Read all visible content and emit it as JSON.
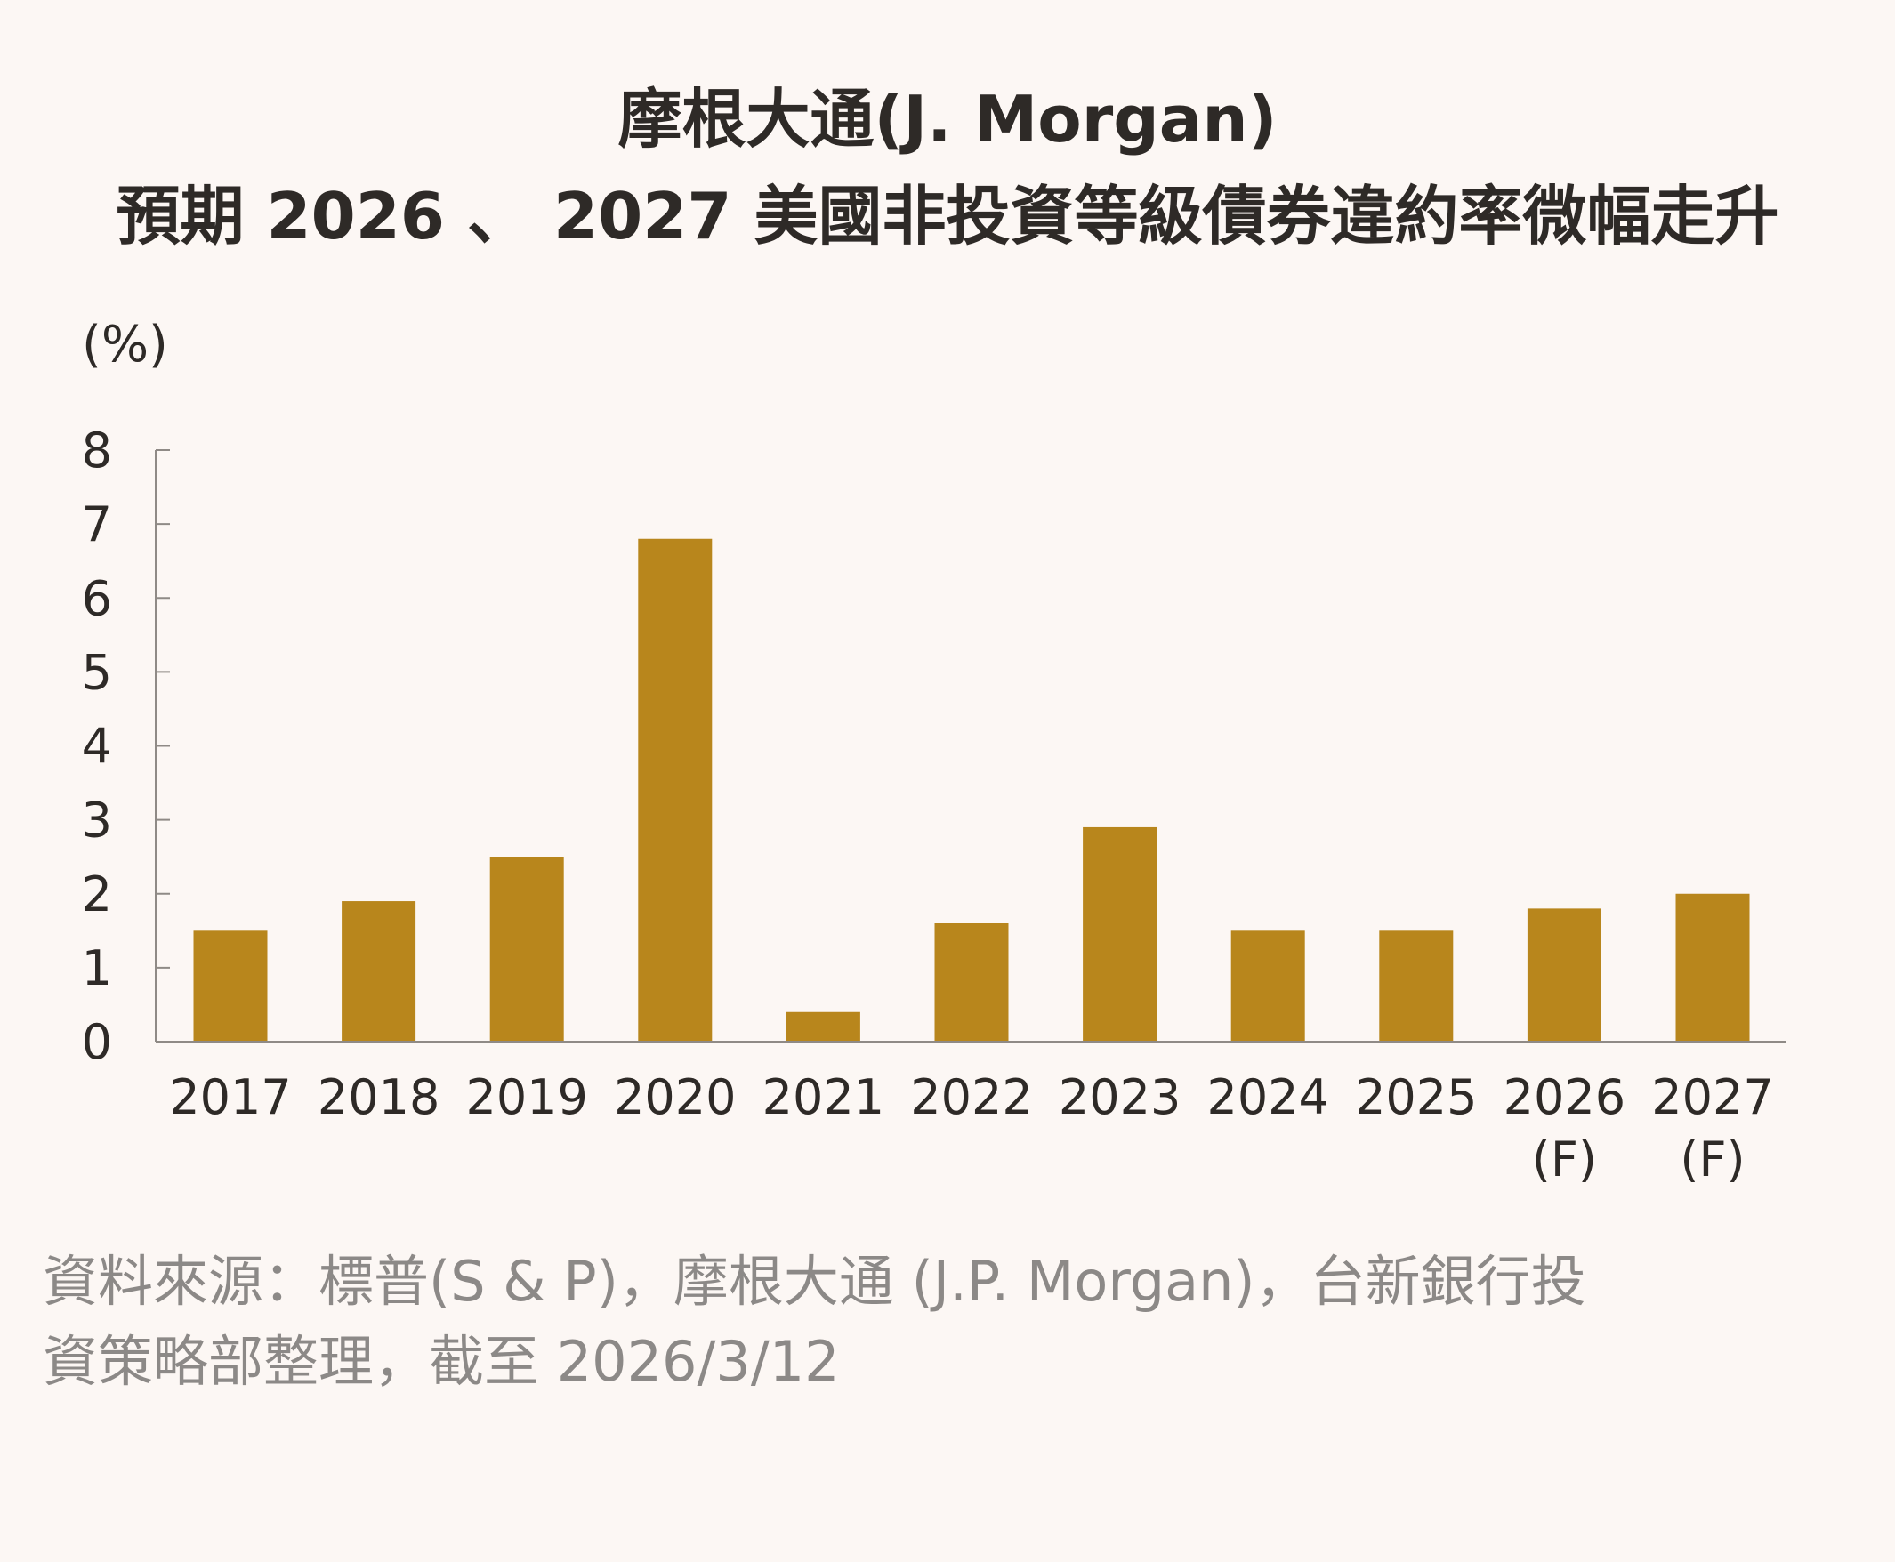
{
  "title_line1": "摩根大通(J. Morgan)",
  "title_line2": "預期 2026 、 2027 美國非投資等級債券違約率微幅走升",
  "source_line1": "資料來源：標普(S & P)，摩根大通 (J.P. Morgan)，台新銀行投",
  "source_line2": "資策略部整理，截至 2026/3/12",
  "colors": {
    "bar": "#b8861c",
    "background": "#fcf7f4",
    "axis": "#8f8a86",
    "text": "#2e2a27",
    "source_text": "#8c8987"
  },
  "chart_data": {
    "type": "bar",
    "title": "摩根大通(J. Morgan) 預期 2026 、 2027 美國非投資等級債券違約率微幅走升",
    "ylabel": "(%)",
    "xlabel": "",
    "ylim": [
      0,
      8
    ],
    "yticks": [
      "0",
      "1",
      "2",
      "3",
      "4",
      "5",
      "6",
      "7",
      "8"
    ],
    "grid": false,
    "categories": [
      {
        "year": "2017",
        "note": ""
      },
      {
        "year": "2018",
        "note": ""
      },
      {
        "year": "2019",
        "note": ""
      },
      {
        "year": "2020",
        "note": ""
      },
      {
        "year": "2021",
        "note": ""
      },
      {
        "year": "2022",
        "note": ""
      },
      {
        "year": "2023",
        "note": ""
      },
      {
        "year": "2024",
        "note": ""
      },
      {
        "year": "2025",
        "note": ""
      },
      {
        "year": "2026",
        "note": "(F)"
      },
      {
        "year": "2027",
        "note": "(F)"
      }
    ],
    "values": [
      1.5,
      1.9,
      2.5,
      6.8,
      0.4,
      1.6,
      2.9,
      1.5,
      1.5,
      1.8,
      2.0
    ]
  }
}
